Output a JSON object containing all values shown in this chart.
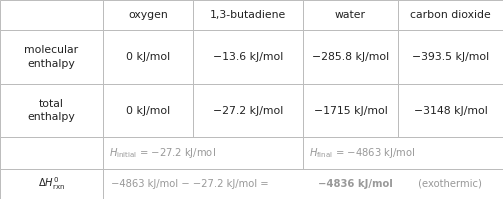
{
  "col_headers": [
    "",
    "oxygen",
    "1,3-butadiene",
    "water",
    "carbon dioxide"
  ],
  "row1_label": "molecular\nenthalpy",
  "row1_values": [
    "0 kJ/mol",
    "−13.6 kJ/mol",
    "−285.8 kJ/mol",
    "−393.5 kJ/mol"
  ],
  "row2_label": "total\nenthalpy",
  "row2_values": [
    "0 kJ/mol",
    "−27.2 kJ/mol",
    "−1715 kJ/mol",
    "−3148 kJ/mol"
  ],
  "row3_col1_val": " = −27.2 kJ/mol",
  "row3_col3_val": " = −4863 kJ/mol",
  "row4_val_normal": "−4863 kJ/mol − −27.2 kJ/mol = ",
  "row4_val_bold": "−4836 kJ/mol",
  "row4_val_end": " (exothermic)",
  "bg_color": "#ffffff",
  "border_color": "#bbbbbb",
  "text_color": "#222222",
  "gray_color": "#999999"
}
